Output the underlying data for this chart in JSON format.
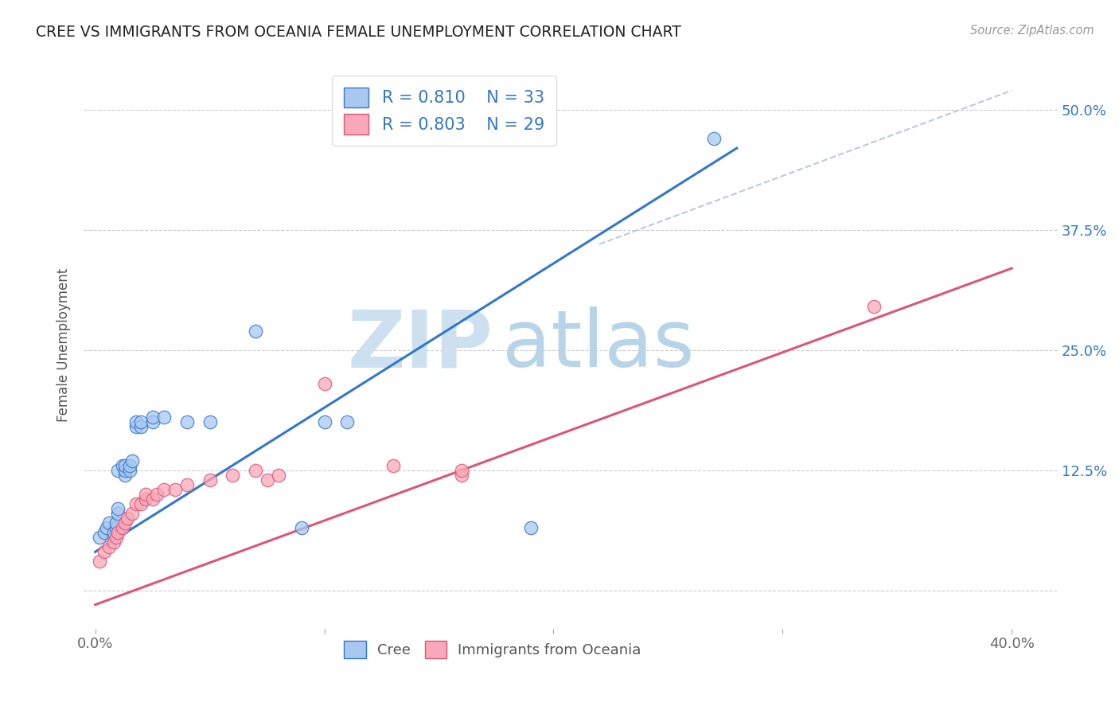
{
  "title": "CREE VS IMMIGRANTS FROM OCEANIA FEMALE UNEMPLOYMENT CORRELATION CHART",
  "source": "Source: ZipAtlas.com",
  "ylabel": "Female Unemployment",
  "cree_R": "0.810",
  "cree_N": "33",
  "oceania_R": "0.803",
  "oceania_N": "29",
  "cree_color": "#a8c8f0",
  "oceania_color": "#f8a8b8",
  "cree_line_color": "#3377cc",
  "oceania_line_color": "#dd5577",
  "dashed_line_color": "#b8ccd8",
  "watermark_zip": "ZIP",
  "watermark_atlas": "atlas",
  "watermark_color_zip": "#cce0f0",
  "watermark_color_atlas": "#b8d4e8",
  "background_color": "#ffffff",
  "grid_color": "#cccccc",
  "cree_scatter": [
    [
      0.002,
      0.055
    ],
    [
      0.004,
      0.06
    ],
    [
      0.005,
      0.065
    ],
    [
      0.006,
      0.07
    ],
    [
      0.008,
      0.055
    ],
    [
      0.008,
      0.06
    ],
    [
      0.009,
      0.065
    ],
    [
      0.009,
      0.07
    ],
    [
      0.01,
      0.08
    ],
    [
      0.01,
      0.085
    ],
    [
      0.01,
      0.125
    ],
    [
      0.012,
      0.13
    ],
    [
      0.013,
      0.12
    ],
    [
      0.013,
      0.125
    ],
    [
      0.013,
      0.13
    ],
    [
      0.015,
      0.125
    ],
    [
      0.015,
      0.13
    ],
    [
      0.016,
      0.135
    ],
    [
      0.018,
      0.17
    ],
    [
      0.018,
      0.175
    ],
    [
      0.02,
      0.17
    ],
    [
      0.02,
      0.175
    ],
    [
      0.025,
      0.175
    ],
    [
      0.025,
      0.18
    ],
    [
      0.03,
      0.18
    ],
    [
      0.04,
      0.175
    ],
    [
      0.05,
      0.175
    ],
    [
      0.07,
      0.27
    ],
    [
      0.09,
      0.065
    ],
    [
      0.1,
      0.175
    ],
    [
      0.11,
      0.175
    ],
    [
      0.27,
      0.47
    ],
    [
      0.19,
      0.065
    ]
  ],
  "oceania_scatter": [
    [
      0.002,
      0.03
    ],
    [
      0.004,
      0.04
    ],
    [
      0.006,
      0.045
    ],
    [
      0.008,
      0.05
    ],
    [
      0.009,
      0.055
    ],
    [
      0.01,
      0.06
    ],
    [
      0.012,
      0.065
    ],
    [
      0.013,
      0.07
    ],
    [
      0.014,
      0.075
    ],
    [
      0.016,
      0.08
    ],
    [
      0.018,
      0.09
    ],
    [
      0.02,
      0.09
    ],
    [
      0.022,
      0.095
    ],
    [
      0.022,
      0.1
    ],
    [
      0.025,
      0.095
    ],
    [
      0.027,
      0.1
    ],
    [
      0.03,
      0.105
    ],
    [
      0.035,
      0.105
    ],
    [
      0.04,
      0.11
    ],
    [
      0.05,
      0.115
    ],
    [
      0.06,
      0.12
    ],
    [
      0.07,
      0.125
    ],
    [
      0.075,
      0.115
    ],
    [
      0.08,
      0.12
    ],
    [
      0.1,
      0.215
    ],
    [
      0.13,
      0.13
    ],
    [
      0.16,
      0.12
    ],
    [
      0.16,
      0.125
    ],
    [
      0.34,
      0.295
    ]
  ],
  "cree_line": [
    0.0,
    0.04,
    0.28,
    0.46
  ],
  "oceania_line": [
    0.0,
    -0.015,
    0.4,
    0.335
  ],
  "dash_line": [
    0.22,
    0.36,
    0.4,
    0.52
  ],
  "xlim": [
    -0.005,
    0.42
  ],
  "ylim": [
    -0.04,
    0.55
  ],
  "x_tick_positions": [
    0.0,
    0.1,
    0.2,
    0.3,
    0.4
  ],
  "x_tick_labels": [
    "0.0%",
    "",
    "",
    "",
    "40.0%"
  ],
  "y_tick_positions": [
    0.0,
    0.125,
    0.25,
    0.375,
    0.5
  ],
  "y_tick_labels_right": [
    "",
    "12.5%",
    "25.0%",
    "37.5%",
    "50.0%"
  ],
  "figsize": [
    14.06,
    8.92
  ],
  "dpi": 100
}
